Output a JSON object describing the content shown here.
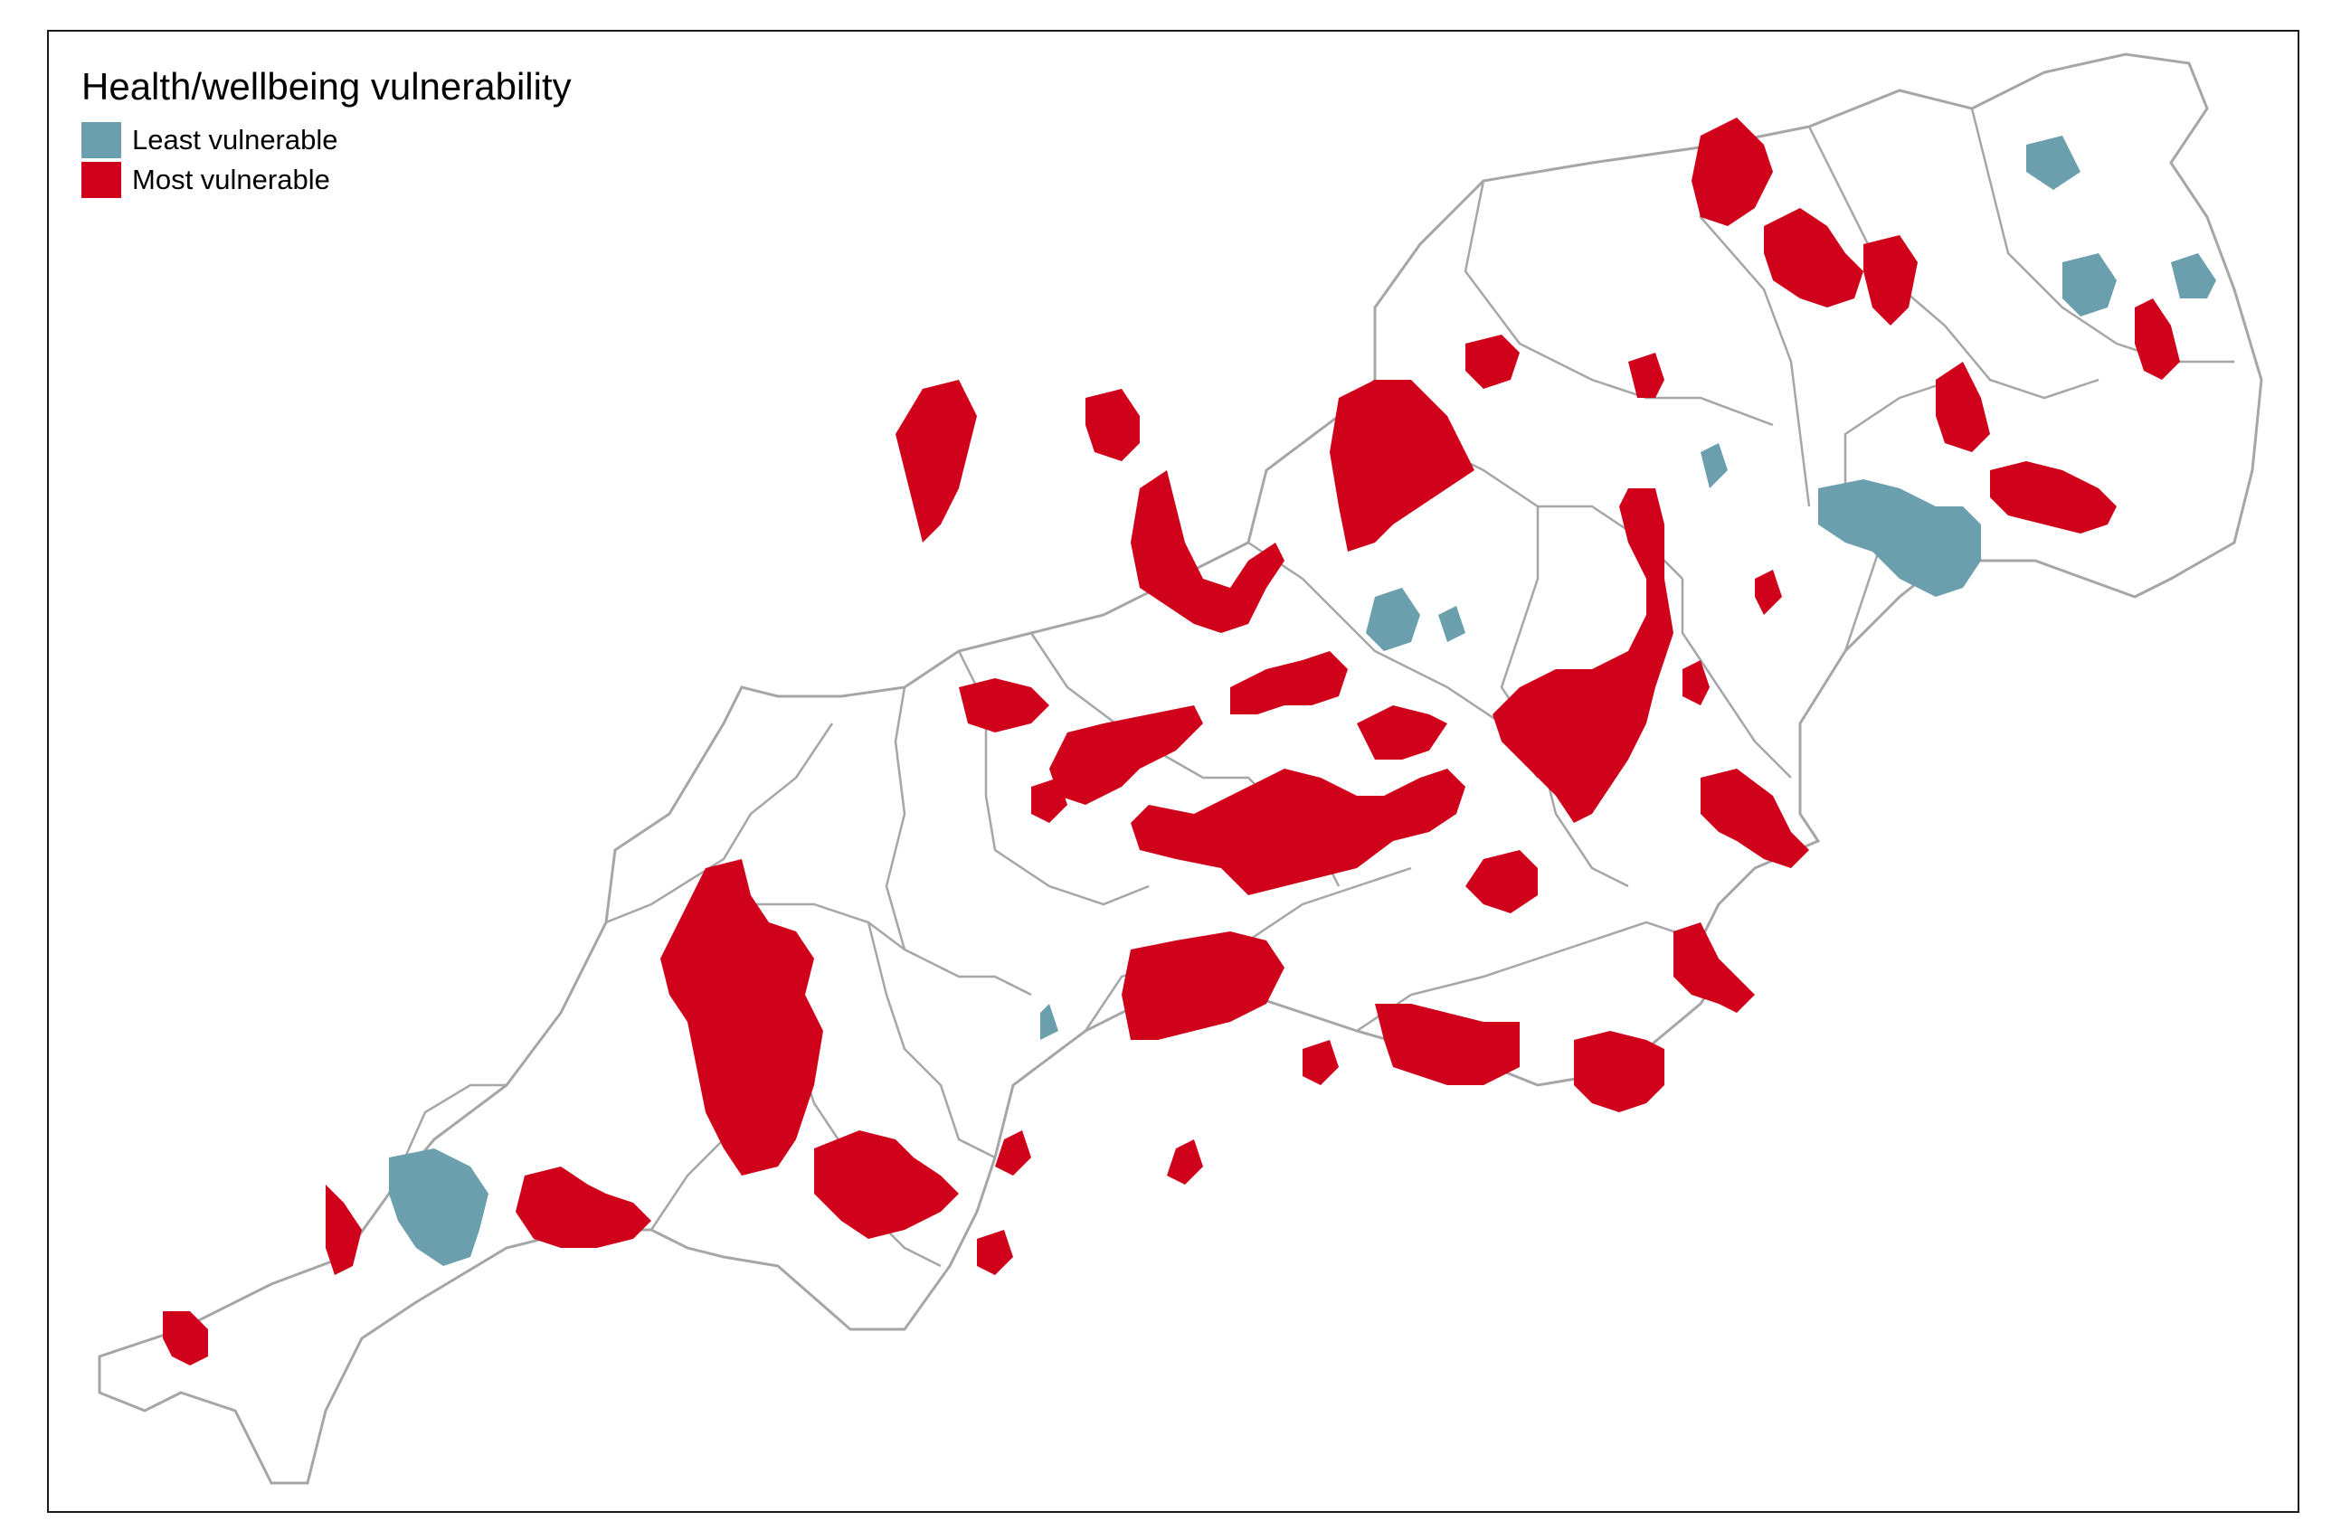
{
  "legend": {
    "title": "Health/wellbeing vulnerability",
    "items": [
      {
        "label": "Least vulnerable",
        "color": "#6b9fae"
      },
      {
        "label": "Most vulnerable",
        "color": "#d0021b"
      }
    ]
  },
  "colors": {
    "boundary": "#a6a6a6",
    "land": "#ffffff",
    "frame": "#1a1a1a"
  }
}
